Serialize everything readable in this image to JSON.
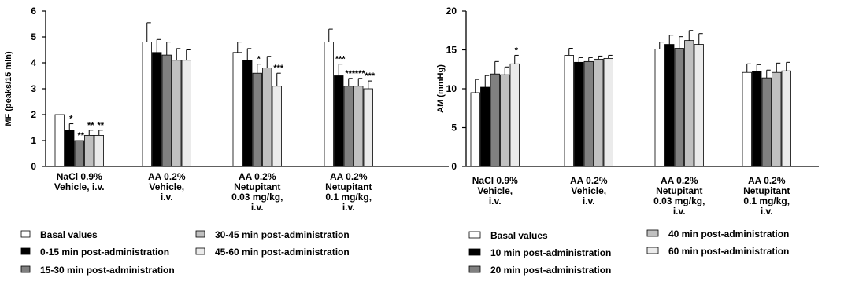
{
  "chart_data": [
    {
      "type": "bar",
      "ylabel": "MF (peaks/15 min)",
      "ylim": [
        0,
        6
      ],
      "yticks": [
        0,
        1,
        2,
        3,
        4,
        5,
        6
      ],
      "grid": false,
      "legend": "bottom",
      "categories": [
        [
          "NaCl 0.9%",
          "Vehicle, i.v."
        ],
        [
          "AA 0.2%",
          "Vehicle,",
          "i.v."
        ],
        [
          "AA 0.2%",
          "Netupitant",
          "0.03 mg/kg,",
          "i.v."
        ],
        [
          "AA 0.2%",
          "Netupitant",
          "0.1 mg/kg,",
          "i.v."
        ]
      ],
      "series": [
        {
          "name": "Basal values",
          "color": "#ffffff",
          "values": [
            2.0,
            4.8,
            4.4,
            4.8
          ],
          "errors": [
            0.0,
            0.75,
            0.4,
            0.5
          ],
          "sig": [
            "",
            "",
            "",
            ""
          ]
        },
        {
          "name": "0-15 min post-administration",
          "color": "#000000",
          "values": [
            1.4,
            4.4,
            4.1,
            3.5
          ],
          "errors": [
            0.25,
            0.5,
            0.45,
            0.45
          ],
          "sig": [
            "*",
            "",
            "",
            "***"
          ]
        },
        {
          "name": "15-30 min post-administration",
          "color": "#808080",
          "values": [
            1.0,
            4.3,
            3.6,
            3.1
          ],
          "errors": [
            0.0,
            0.5,
            0.35,
            0.3
          ],
          "sig": [
            "**",
            "",
            "*",
            "***"
          ]
        },
        {
          "name": "30-45 min post-administration",
          "color": "#c0c0c0",
          "values": [
            1.2,
            4.1,
            3.8,
            3.1
          ],
          "errors": [
            0.2,
            0.45,
            0.45,
            0.3
          ],
          "sig": [
            "**",
            "",
            "",
            "***"
          ]
        },
        {
          "name": "45-60 min post-administration",
          "color": "#ebebeb",
          "values": [
            1.2,
            4.1,
            3.1,
            3.0
          ],
          "errors": [
            0.2,
            0.4,
            0.5,
            0.3
          ],
          "sig": [
            "**",
            "",
            "***",
            "***"
          ]
        }
      ]
    },
    {
      "type": "bar",
      "ylabel": "AM (mmHg)",
      "ylim": [
        0,
        20
      ],
      "yticks": [
        0,
        5,
        10,
        15,
        20
      ],
      "grid": false,
      "legend": "bottom",
      "categories": [
        [
          "NaCl 0.9%",
          "Vehicle,",
          "i.v."
        ],
        [
          "AA 0.2%",
          "Vehicle,",
          "i.v."
        ],
        [
          "AA 0.2%",
          "Netupitant",
          "0.03 mg/kg,",
          "i.v."
        ],
        [
          "AA 0.2%",
          "Netupitant",
          "0.1 mg/kg,",
          "i.v."
        ]
      ],
      "series": [
        {
          "name": "Basal values",
          "color": "#ffffff",
          "values": [
            9.5,
            14.3,
            15.1,
            12.1
          ],
          "errors": [
            1.7,
            0.9,
            0.9,
            1.1
          ],
          "sig": [
            "",
            "",
            "",
            ""
          ]
        },
        {
          "name": "10 min post-administration",
          "color": "#000000",
          "values": [
            10.2,
            13.4,
            15.7,
            12.2
          ],
          "errors": [
            1.5,
            0.6,
            1.2,
            0.9
          ],
          "sig": [
            "",
            "",
            "",
            ""
          ]
        },
        {
          "name": "20 min post-administration",
          "color": "#808080",
          "values": [
            11.9,
            13.5,
            15.2,
            11.4
          ],
          "errors": [
            1.6,
            0.5,
            1.5,
            1.0
          ],
          "sig": [
            "",
            "",
            "",
            ""
          ]
        },
        {
          "name": "40 min post-administration",
          "color": "#c0c0c0",
          "values": [
            11.8,
            13.8,
            16.2,
            12.1
          ],
          "errors": [
            1.0,
            0.4,
            1.3,
            1.2
          ],
          "sig": [
            "",
            "",
            "",
            ""
          ]
        },
        {
          "name": "60 min post-administration",
          "color": "#ebebeb",
          "values": [
            13.2,
            13.9,
            15.7,
            12.3
          ],
          "errors": [
            1.1,
            0.4,
            1.4,
            1.1
          ],
          "sig": [
            "*",
            "",
            "",
            ""
          ]
        }
      ]
    }
  ]
}
